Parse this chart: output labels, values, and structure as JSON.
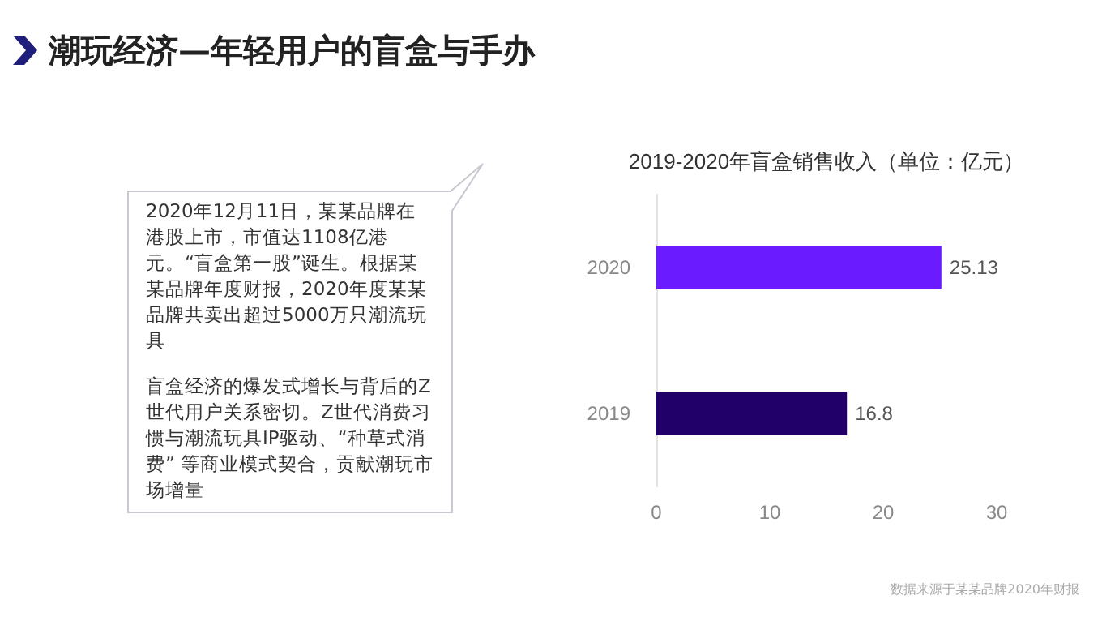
{
  "chart_data": [
    {
      "type": "other",
      "title": "潮玩经济—年轻用户的盲盒与手办",
      "annotations": [
        "2020年12月11日，某某品牌在港股上市，市值达1108亿港元。“盲盒第一股”诞生。根据某某品牌年度财报，2020年度某某品牌共卖出超过5000万只潮流玩具",
        "盲盒经济的爆发式增长与背后的Z世代用户关系密切。Z世代消费习惯与潮流玩具IP驱动、“种草式消费” 等商业模式契合，贡献潮玩市场增量"
      ]
    },
    {
      "type": "bar",
      "orientation": "horizontal",
      "title": "2019-2020年盲盒销售收入（单位：亿元）",
      "categories": [
        "2020",
        "2019"
      ],
      "values": [
        25.13,
        16.8
      ],
      "colors": [
        "#6a1bff",
        "#22006a"
      ],
      "xlim": [
        0,
        30
      ],
      "xticks": [
        0,
        10,
        20,
        30
      ],
      "data_labels": true,
      "grid": false,
      "annotations": [
        "数据来源于某某品牌2020年财报"
      ]
    }
  ]
}
